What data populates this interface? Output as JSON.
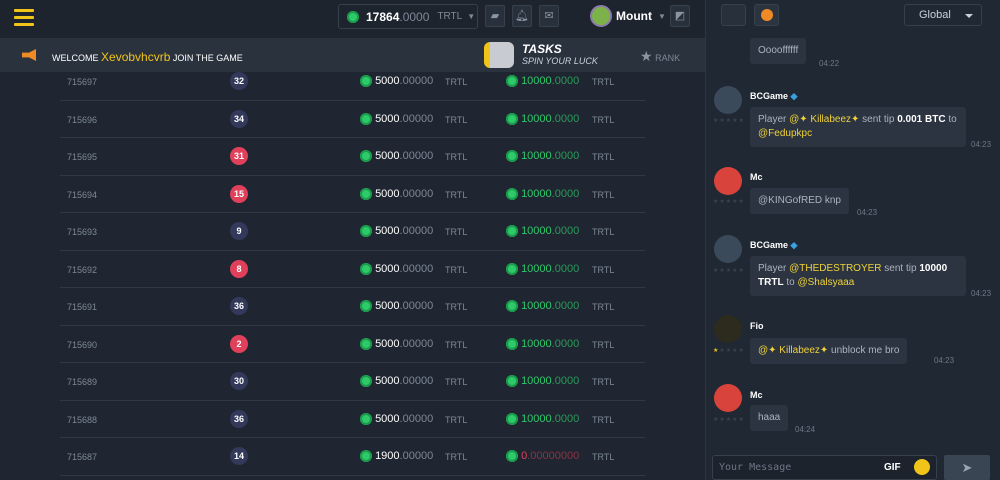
{
  "header": {
    "balance_int": "17864",
    "balance_dec": ".0000",
    "currency": "TRTL",
    "username": "Mount"
  },
  "banner": {
    "welcome_prefix": "WELCOME ",
    "welcome_name": "Xevobvhcvrb",
    "welcome_suffix": " JOIN THE GAME",
    "tasks_title": "TASKS",
    "tasks_sub": "SPIN YOUR LUCK",
    "rank": "RANK"
  },
  "colors": {
    "badge_red": "#e0405a",
    "badge_dark": "#33395a",
    "accent": "#f0c419",
    "green": "#2ec968"
  },
  "rows": [
    {
      "id": "715697",
      "num": "32",
      "red": false,
      "bet_int": "5000",
      "bet_dec": ".00000",
      "cur": "TRTL",
      "pay_int": "10000",
      "pay_dec": ".0000",
      "neg": false
    },
    {
      "id": "715696",
      "num": "34",
      "red": false,
      "bet_int": "5000",
      "bet_dec": ".00000",
      "cur": "TRTL",
      "pay_int": "10000",
      "pay_dec": ".0000",
      "neg": false
    },
    {
      "id": "715695",
      "num": "31",
      "red": true,
      "bet_int": "5000",
      "bet_dec": ".00000",
      "cur": "TRTL",
      "pay_int": "10000",
      "pay_dec": ".0000",
      "neg": false
    },
    {
      "id": "715694",
      "num": "15",
      "red": true,
      "bet_int": "5000",
      "bet_dec": ".00000",
      "cur": "TRTL",
      "pay_int": "10000",
      "pay_dec": ".0000",
      "neg": false
    },
    {
      "id": "715693",
      "num": "9",
      "red": false,
      "bet_int": "5000",
      "bet_dec": ".00000",
      "cur": "TRTL",
      "pay_int": "10000",
      "pay_dec": ".0000",
      "neg": false
    },
    {
      "id": "715692",
      "num": "8",
      "red": true,
      "bet_int": "5000",
      "bet_dec": ".00000",
      "cur": "TRTL",
      "pay_int": "10000",
      "pay_dec": ".0000",
      "neg": false
    },
    {
      "id": "715691",
      "num": "36",
      "red": false,
      "bet_int": "5000",
      "bet_dec": ".00000",
      "cur": "TRTL",
      "pay_int": "10000",
      "pay_dec": ".0000",
      "neg": false
    },
    {
      "id": "715690",
      "num": "2",
      "red": true,
      "bet_int": "5000",
      "bet_dec": ".00000",
      "cur": "TRTL",
      "pay_int": "10000",
      "pay_dec": ".0000",
      "neg": false
    },
    {
      "id": "715689",
      "num": "30",
      "red": false,
      "bet_int": "5000",
      "bet_dec": ".00000",
      "cur": "TRTL",
      "pay_int": "10000",
      "pay_dec": ".0000",
      "neg": false
    },
    {
      "id": "715688",
      "num": "36",
      "red": false,
      "bet_int": "5000",
      "bet_dec": ".00000",
      "cur": "TRTL",
      "pay_int": "10000",
      "pay_dec": ".0000",
      "neg": false
    },
    {
      "id": "715687",
      "num": "14",
      "red": false,
      "bet_int": "1900",
      "bet_dec": ".00000",
      "cur": "TRTL",
      "pay_int": "0",
      "pay_dec": ".00000000",
      "neg": true
    }
  ],
  "chat": {
    "channel": "Global",
    "m0": {
      "text": "Ooooffffff",
      "time": "04:22"
    },
    "m1": {
      "name": "BCGame",
      "a": "Player ",
      "b": "@✦ Killabeez✦",
      "c": " sent tip ",
      "d": "0.001 BTC",
      "e": " to ",
      "f": "@Fedupkpc",
      "time": "04:23"
    },
    "m2": {
      "name": "Mc",
      "text": "@KINGofRED knp",
      "time": "04:23"
    },
    "m3": {
      "name": "BCGame",
      "a": "Player ",
      "b": "@THEDESTROYER",
      "c": " sent tip ",
      "d": "10000 TRTL",
      "e": " to ",
      "f": "@Shalsyaaa",
      "time": "04:23"
    },
    "m4": {
      "name": "Fio",
      "b": "@✦ Killabeez✦",
      "c": " unblock me bro",
      "time": "04:23"
    },
    "m5": {
      "name": "Mc",
      "text": "haaa",
      "time": "04:24"
    },
    "placeholder": "Your Message",
    "gif": "GIF"
  }
}
